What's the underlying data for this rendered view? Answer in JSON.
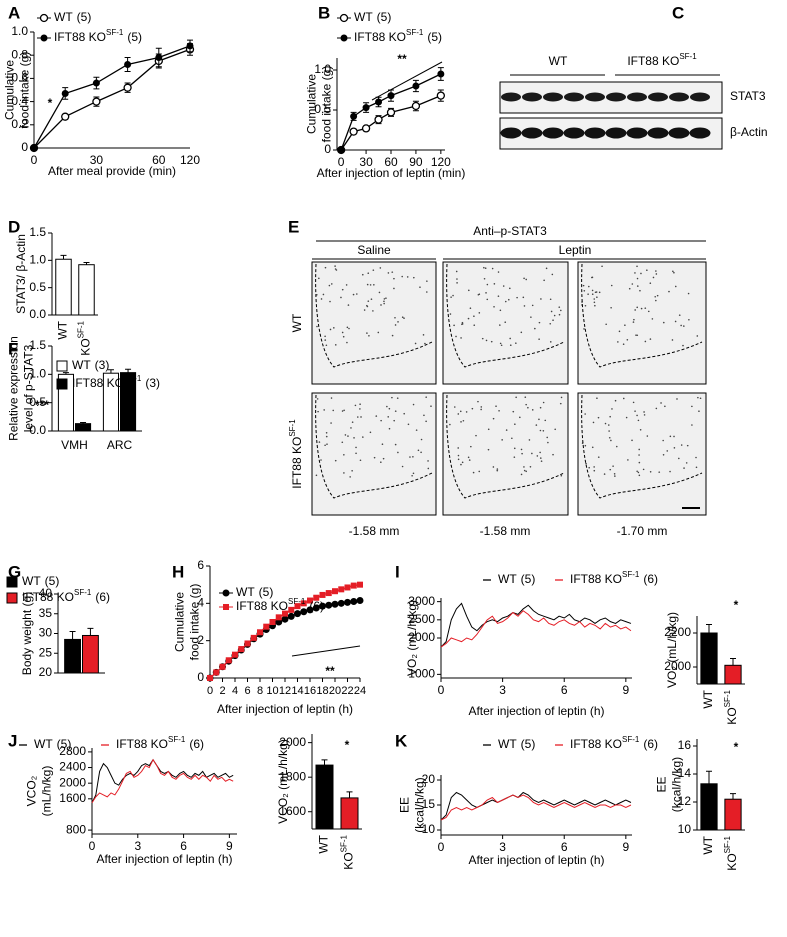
{
  "panel_labels": [
    "A",
    "B",
    "C",
    "D",
    "E",
    "F",
    "G",
    "H",
    "I",
    "J",
    "K"
  ],
  "blot": {
    "groups": [
      "WT",
      "IFT88 KO"
    ],
    "group_superscript": "SF-1",
    "rows": [
      "STAT3",
      "β-Actin"
    ]
  },
  "histology": {
    "title": "Anti–p-STAT3",
    "columns": [
      "Saline",
      "Leptin"
    ],
    "rows": [
      "WT",
      "IFT88 KO"
    ],
    "row_superscript": "SF-1",
    "levels": [
      "-1.58 mm",
      "-1.58 mm",
      "-1.70 mm"
    ]
  },
  "chart_data": [
    {
      "type": "line",
      "categories": [
        0,
        null,
        30,
        null,
        60,
        120
      ],
      "xlabel": "After meal provide (min)",
      "ylabel": [
        "Cumulative",
        "food intake (g)"
      ],
      "ylim": [
        0,
        1
      ],
      "yticks": [
        0,
        0.2,
        0.4,
        0.6,
        0.8,
        {
          "value": 1,
          "label": "1.0"
        }
      ],
      "series": [
        {
          "name": "WT",
          "n": "(5)",
          "marker": "open-circle",
          "color": "#000000",
          "values": [
            0,
            0.27,
            0.4,
            0.52,
            0.75,
            0.85
          ],
          "errors": [
            0,
            0.02,
            0.04,
            0.04,
            0.06,
            0.05
          ]
        },
        {
          "name": "IFT88 KO",
          "superscript": "SF-1",
          "n": "(5)",
          "marker": "circle",
          "color": "#000000",
          "values": [
            0,
            0.47,
            0.56,
            0.72,
            0.78,
            0.88
          ],
          "errors": [
            0,
            0.05,
            0.05,
            0.06,
            0.08,
            0.05
          ]
        }
      ],
      "annotations": [
        "*"
      ]
    },
    {
      "type": "line",
      "x": [
        0,
        15,
        30,
        45,
        60,
        90,
        120
      ],
      "xlim": [
        -5,
        125
      ],
      "xticks": [
        0,
        30,
        60,
        90,
        120
      ],
      "xlabel": "After injection of leptin (min)",
      "ylabel": [
        "Cumulative",
        "food intake (g)"
      ],
      "ylim": [
        0,
        1.15
      ],
      "yticks": [
        0,
        0.5,
        {
          "value": 1,
          "label": "1.0"
        }
      ],
      "series": [
        {
          "name": "WT",
          "n": "(5)",
          "marker": "open-circle",
          "color": "#000000",
          "values": [
            0,
            0.23,
            0.27,
            0.38,
            0.47,
            0.55,
            0.68
          ],
          "errors": [
            0,
            0.03,
            0.03,
            0.05,
            0.05,
            0.06,
            0.07
          ]
        },
        {
          "name": "IFT88 KO",
          "superscript": "SF-1",
          "n": "(5)",
          "marker": "circle",
          "color": "#000000",
          "values": [
            0,
            0.42,
            0.53,
            0.6,
            0.68,
            0.8,
            0.95
          ],
          "errors": [
            0,
            0.05,
            0.06,
            0.06,
            0.07,
            0.07,
            0.08
          ]
        }
      ],
      "annotations": [
        "**"
      ]
    },
    {
      "type": "bar",
      "categories": [
        "WT",
        "KO"
      ],
      "category_superscripts": [
        null,
        "SF-1"
      ],
      "ylabel": [
        "STAT3/ β-Actin"
      ],
      "ylim": [
        0,
        1.5
      ],
      "yticks": [
        {
          "value": 0,
          "label": "0.0"
        },
        0.5,
        {
          "value": 1,
          "label": "1.0"
        },
        1.5
      ],
      "series": [
        {
          "color": "#ffffff",
          "values": [
            1.02,
            0.92
          ],
          "errors": [
            0.07,
            0.04
          ]
        }
      ]
    },
    {
      "type": "bar",
      "categories": [
        "VMH",
        "ARC"
      ],
      "ylabel": [
        "Relative expression",
        "level of p-STAT3"
      ],
      "ylim": [
        0,
        1.5
      ],
      "yticks": [
        {
          "value": 0,
          "label": "0.0"
        },
        0.5,
        {
          "value": 1,
          "label": "1.0"
        },
        1.5
      ],
      "series": [
        {
          "name": "WT",
          "n": "(3)",
          "color": "#ffffff",
          "values": [
            1.0,
            1.02
          ],
          "errors": [
            0.03,
            0.06
          ]
        },
        {
          "name": "IFT88 KO",
          "superscript": "SF-1",
          "n": "(3)",
          "color": "#000000",
          "values": [
            0.13,
            1.03
          ],
          "errors": [
            0.02,
            0.06
          ]
        }
      ],
      "annotations": [
        "***"
      ]
    },
    {
      "type": "bar",
      "categories": [
        null
      ],
      "ylabel": [
        "Body weight (g)"
      ],
      "ylim": [
        20,
        40
      ],
      "yticks": [
        20,
        25,
        30,
        35,
        40
      ],
      "series": [
        {
          "name": "WT",
          "n": "(5)",
          "color": "#000000",
          "values": [
            28.5
          ],
          "errors": [
            2
          ]
        },
        {
          "name": "IFT88 KO",
          "superscript": "SF-1",
          "n": "(6)",
          "color": "#e41e26",
          "values": [
            29.5
          ],
          "errors": [
            1.8
          ]
        }
      ]
    },
    {
      "type": "line",
      "x": [
        0,
        1,
        2,
        3,
        4,
        5,
        6,
        7,
        8,
        9,
        10,
        11,
        12,
        13,
        14,
        15,
        16,
        17,
        18,
        19,
        20,
        21,
        22,
        23,
        24
      ],
      "xlim": [
        0,
        24
      ],
      "xticks": [
        0,
        2,
        4,
        6,
        8,
        10,
        12,
        14,
        16,
        18,
        20,
        22,
        24
      ],
      "xlabel": "After injection of leptin (h)",
      "ylabel": [
        "Cumulative",
        "food intake (g)"
      ],
      "ylim": [
        0,
        6
      ],
      "yticks": [
        0,
        2,
        4,
        6
      ],
      "series": [
        {
          "name": "WT",
          "n": "(5)",
          "marker": "circle",
          "color": "#000000",
          "values": [
            0,
            0.3,
            0.6,
            0.9,
            1.2,
            1.5,
            1.8,
            2.1,
            2.35,
            2.6,
            2.8,
            3.0,
            3.15,
            3.3,
            3.45,
            3.55,
            3.65,
            3.75,
            3.85,
            3.9,
            3.95,
            4.0,
            4.05,
            4.1,
            4.15
          ]
        },
        {
          "name": "IFT88 KO",
          "superscript": "SF-1",
          "n": "(6)",
          "marker": "square",
          "color": "#e41e26",
          "values": [
            0,
            0.3,
            0.6,
            0.95,
            1.25,
            1.55,
            1.85,
            2.15,
            2.45,
            2.75,
            3.0,
            3.25,
            3.45,
            3.65,
            3.85,
            4.0,
            4.15,
            4.3,
            4.45,
            4.55,
            4.65,
            4.75,
            4.85,
            4.95,
            5.0
          ]
        }
      ],
      "annotations": [
        "**"
      ]
    },
    {
      "type": "line",
      "x": [
        0,
        0.25,
        0.5,
        0.75,
        1,
        1.25,
        1.5,
        1.75,
        2,
        2.25,
        2.5,
        2.75,
        3,
        3.25,
        3.5,
        3.75,
        4,
        4.25,
        4.5,
        4.75,
        5,
        5.25,
        5.5,
        5.75,
        6,
        6.25,
        6.5,
        6.75,
        7,
        7.25,
        7.5,
        7.75,
        8,
        8.25,
        8.5,
        8.75,
        9,
        9.25
      ],
      "xlim": [
        0,
        9.3
      ],
      "xticks": [
        0,
        3,
        6,
        9
      ],
      "xlabel": "After injection of leptin (h)",
      "ylabel": [
        "VO₂ (mL/h/kg)"
      ],
      "ylim": [
        900,
        3100
      ],
      "yticks": [
        1000,
        2000,
        2500,
        3000
      ],
      "series": [
        {
          "name": "WT",
          "n": "(5)",
          "marker": "line",
          "color": "#000000",
          "values": [
            1750,
            1900,
            2500,
            2800,
            2950,
            2600,
            2300,
            2200,
            2350,
            2450,
            2500,
            2450,
            2550,
            2600,
            2700,
            2650,
            2800,
            2900,
            2750,
            2650,
            2600,
            2550,
            2500,
            2600,
            2550,
            2650,
            2500,
            2450,
            2550,
            2500,
            2400,
            2500,
            2550,
            2450,
            2400,
            2500,
            2450,
            2400
          ]
        },
        {
          "name": "IFT88 KO",
          "superscript": "SF-1",
          "n": "(6)",
          "marker": "line",
          "color": "#e41e26",
          "values": [
            1750,
            1850,
            2000,
            1950,
            1900,
            2000,
            1950,
            2100,
            2300,
            2500,
            2600,
            2400,
            2450,
            2550,
            2700,
            2600,
            2750,
            2650,
            2500,
            2450,
            2550,
            2400,
            2350,
            2450,
            2500,
            2400,
            2350,
            2450,
            2300,
            2400,
            2350,
            2250,
            2400,
            2300,
            2350,
            2250,
            2300,
            2200
          ]
        }
      ]
    },
    {
      "type": "bar",
      "categories": [
        "WT",
        "KO"
      ],
      "category_superscripts": [
        null,
        "SF-1"
      ],
      "ylabel": [
        "VO₂ (mL/h/kg)"
      ],
      "ylim": [
        1900,
        2300
      ],
      "yticks": [
        2000,
        2200
      ],
      "series": [
        {
          "colors": [
            "#000000",
            "#e41e26"
          ],
          "values": [
            2200,
            2010
          ],
          "errors": [
            50,
            40
          ]
        }
      ],
      "annotations": [
        "*"
      ]
    },
    {
      "type": "line",
      "x": [
        0,
        0.25,
        0.5,
        0.75,
        1,
        1.25,
        1.5,
        1.75,
        2,
        2.25,
        2.5,
        2.75,
        3,
        3.25,
        3.5,
        3.75,
        4,
        4.25,
        4.5,
        4.75,
        5,
        5.25,
        5.5,
        5.75,
        6,
        6.25,
        6.5,
        6.75,
        7,
        7.25,
        7.5,
        7.75,
        8,
        8.25,
        8.5,
        8.75,
        9,
        9.25
      ],
      "xlim": [
        0,
        9.5
      ],
      "xticks": [
        0,
        3,
        6,
        9
      ],
      "xlabel": "After injection of leptin (h)",
      "ylabel": [
        "VCO₂",
        "(mL/h/kg)"
      ],
      "ylim": [
        700,
        2900
      ],
      "yticks": [
        800,
        1600,
        2000,
        2400,
        2800
      ],
      "series": [
        {
          "name": "WT",
          "n": "(5)",
          "marker": "line",
          "color": "#000000",
          "values": [
            1500,
            1700,
            2300,
            2500,
            2400,
            2200,
            2000,
            1950,
            2100,
            2200,
            2250,
            2200,
            2300,
            2450,
            2500,
            2450,
            2600,
            2450,
            2300,
            2250,
            2300,
            2200,
            2150,
            2250,
            2300,
            2200,
            2150,
            2250,
            2200,
            2300,
            2150,
            2200,
            2250,
            2150,
            2200,
            2250,
            2150,
            2200
          ]
        },
        {
          "name": "IFT88 KO",
          "superscript": "SF-1",
          "n": "(6)",
          "marker": "line",
          "color": "#e41e26",
          "values": [
            1500,
            1650,
            1750,
            1700,
            1650,
            1750,
            1700,
            1850,
            2050,
            2250,
            2300,
            2150,
            2200,
            2300,
            2450,
            2400,
            2600,
            2450,
            2250,
            2200,
            2300,
            2150,
            2100,
            2200,
            2250,
            2150,
            2100,
            2200,
            2100,
            2200,
            2150,
            2050,
            2200,
            2100,
            2150,
            2050,
            2100,
            2050
          ]
        }
      ]
    },
    {
      "type": "bar",
      "categories": [
        "WT",
        "KO"
      ],
      "category_superscripts": [
        null,
        "SF-1"
      ],
      "ylabel": [
        "VCO₂ (mL/h/kg)"
      ],
      "ylim": [
        1500,
        2050
      ],
      "yticks": [
        1600,
        1800,
        2000
      ],
      "series": [
        {
          "colors": [
            "#000000",
            "#e41e26"
          ],
          "values": [
            1870,
            1680
          ],
          "errors": [
            30,
            35
          ]
        }
      ],
      "annotations": [
        "*"
      ]
    },
    {
      "type": "line",
      "x": [
        0,
        0.25,
        0.5,
        0.75,
        1,
        1.25,
        1.5,
        1.75,
        2,
        2.25,
        2.5,
        2.75,
        3,
        3.25,
        3.5,
        3.75,
        4,
        4.25,
        4.5,
        4.75,
        5,
        5.25,
        5.5,
        5.75,
        6,
        6.25,
        6.5,
        6.75,
        7,
        7.25,
        7.5,
        7.75,
        8,
        8.25,
        8.5,
        8.75,
        9,
        9.25
      ],
      "xlim": [
        0,
        9.3
      ],
      "xticks": [
        0,
        3,
        6,
        9
      ],
      "xlabel": "After injection of leptin (h)",
      "ylabel": [
        "EE",
        "(kcal/h/kg)"
      ],
      "ylim": [
        9,
        21
      ],
      "yticks": [
        10,
        15,
        20
      ],
      "series": [
        {
          "name": "WT",
          "n": "(5)",
          "marker": "line",
          "color": "#000000",
          "values": [
            12,
            13,
            16.5,
            17.5,
            17,
            16,
            15,
            14.5,
            15,
            15.5,
            16,
            15.5,
            16,
            16.5,
            17,
            16.5,
            17.5,
            17,
            16,
            15.5,
            16,
            15.5,
            15,
            15.5,
            16,
            15.5,
            15,
            15.5,
            16,
            15.5,
            15,
            15.5,
            16,
            15.5,
            15,
            15.5,
            16,
            15.5
          ]
        },
        {
          "name": "IFT88 KO",
          "superscript": "SF-1",
          "n": "(6)",
          "marker": "line",
          "color": "#e41e26",
          "values": [
            12,
            12.5,
            14,
            14.5,
            14,
            14.5,
            14,
            14.5,
            15,
            16,
            16.5,
            15.5,
            16,
            16.5,
            17,
            16.5,
            17,
            16.5,
            15.5,
            15,
            15.5,
            15,
            14.5,
            15,
            15.5,
            15,
            14.5,
            15,
            15.5,
            15,
            14.5,
            15,
            15,
            14.5,
            15,
            15,
            14.5,
            15
          ]
        }
      ]
    },
    {
      "type": "bar",
      "categories": [
        "WT",
        "KO"
      ],
      "category_superscripts": [
        null,
        "SF-1"
      ],
      "ylabel": [
        "EE",
        "(kcal/h/kg)"
      ],
      "ylim": [
        10,
        16.5
      ],
      "yticks": [
        10,
        12,
        14,
        16
      ],
      "series": [
        {
          "colors": [
            "#000000",
            "#e41e26"
          ],
          "values": [
            13.3,
            12.2
          ],
          "errors": [
            0.9,
            0.4
          ]
        }
      ],
      "annotations": [
        "*"
      ]
    }
  ]
}
